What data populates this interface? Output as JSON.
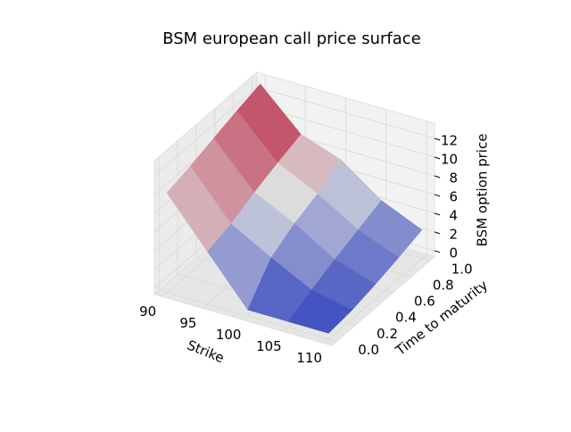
{
  "chart_data": {
    "type": "surface",
    "title": "BSM european call price surface",
    "xlabel": "Strike",
    "ylabel": "Time to maturity",
    "zlabel": "BSM option price",
    "x": [
      90,
      95,
      100,
      105,
      110
    ],
    "y": [
      0,
      0.25,
      0.5,
      0.75,
      1
    ],
    "z": [
      [
        10,
        5,
        0,
        0,
        0
      ],
      [
        10.7,
        5.8,
        3.4,
        1.2,
        0.3
      ],
      [
        11.5,
        7.0,
        4.9,
        2.3,
        0.9
      ],
      [
        12.3,
        8.0,
        5.9,
        3.3,
        1.6
      ],
      [
        13.0,
        8.9,
        7.4,
        4.3,
        2.4
      ]
    ],
    "colormap": [
      "#3b4cc0",
      "#dddddd",
      "#b40426"
    ],
    "xlim": [
      89,
      111
    ],
    "ylim": [
      -0.05,
      1.05
    ],
    "zlim": [
      -0.65,
      13.6
    ],
    "xticks": [
      90,
      95,
      100,
      105,
      110
    ],
    "yticks": [
      {
        "value": 0,
        "label": "0.0"
      },
      0.2,
      0.4,
      0.6,
      0.8,
      {
        "value": 1,
        "label": "1.0"
      }
    ],
    "zticks": [
      0,
      2,
      4,
      6,
      8,
      10,
      12
    ],
    "grid": true
  }
}
